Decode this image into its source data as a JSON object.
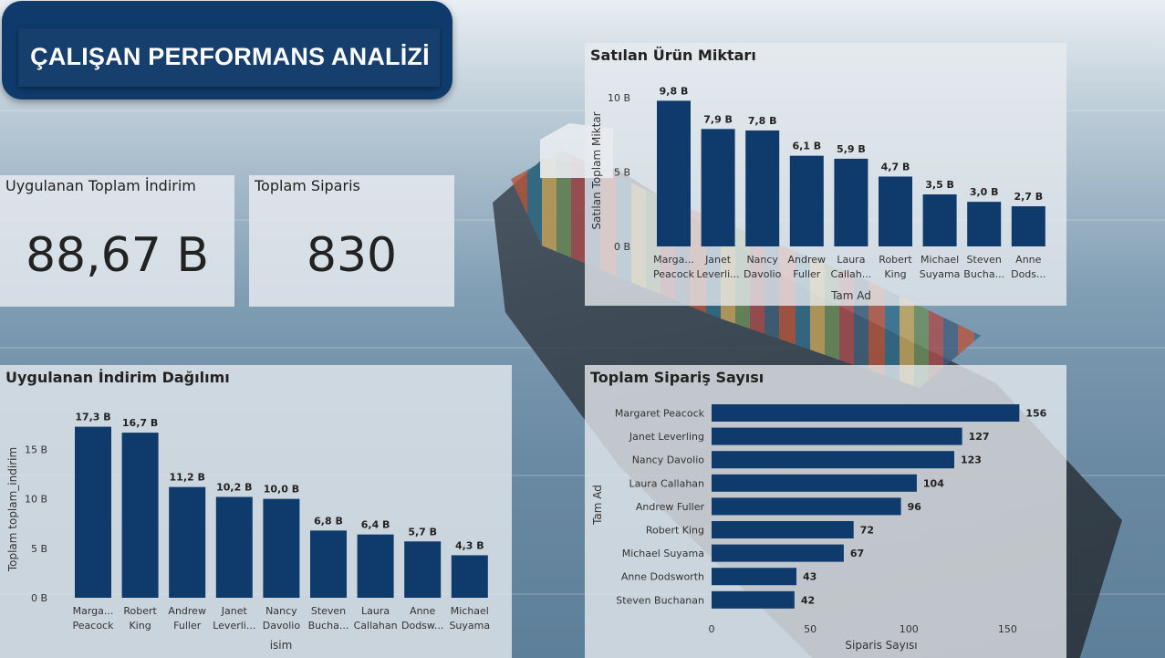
{
  "header": {
    "title": "ÇALIŞAN PERFORMANS ANALİZİ"
  },
  "kpis": {
    "discount": {
      "label": "Uygulanan Toplam İndirim",
      "value": "88,67 B"
    },
    "orders": {
      "label": "Toplam Siparis",
      "value": "830"
    }
  },
  "colors": {
    "bar": "#0f3a6c",
    "panel": "#e8ecf0"
  },
  "chart_data": [
    {
      "id": "quantity",
      "type": "bar",
      "title": "Satılan Ürün Miktarı",
      "xlabel": "Tam Ad",
      "ylabel": "Satılan Toplam Miktar",
      "categories": [
        "Marga... Peacock",
        "Janet Leverli...",
        "Nancy Davolio",
        "Andrew Fuller",
        "Laura Callah...",
        "Robert King",
        "Michael Suyama",
        "Steven Bucha...",
        "Anne Dods..."
      ],
      "values": [
        9.8,
        7.9,
        7.8,
        6.1,
        5.9,
        4.7,
        3.5,
        3.0,
        2.7
      ],
      "data_labels": [
        "9,8 B",
        "7,9 B",
        "7,8 B",
        "6,1 B",
        "5,9 B",
        "4,7 B",
        "3,5 B",
        "3,0 B",
        "2,7 B"
      ],
      "yticks": [
        0,
        5,
        10
      ],
      "ytick_labels": [
        "0 B",
        "5 B",
        "10 B"
      ],
      "ylim": [
        0,
        10.5
      ]
    },
    {
      "id": "discount",
      "type": "bar",
      "title": "Uygulanan İndirim Dağılımı",
      "xlabel": "isim",
      "ylabel": "Toplam toplam_indirim",
      "categories": [
        "Marga... Peacock",
        "Robert King",
        "Andrew Fuller",
        "Janet Leverli...",
        "Nancy Davolio",
        "Steven Bucha...",
        "Laura Callahan",
        "Anne Dodsw...",
        "Michael Suyama"
      ],
      "values": [
        17.3,
        16.7,
        11.2,
        10.2,
        10.0,
        6.8,
        6.4,
        5.7,
        4.3
      ],
      "data_labels": [
        "17,3 B",
        "16,7 B",
        "11,2 B",
        "10,2 B",
        "10,0 B",
        "6,8 B",
        "6,4 B",
        "5,7 B",
        "4,3 B"
      ],
      "yticks": [
        0,
        5,
        10,
        15
      ],
      "ytick_labels": [
        "0 B",
        "5 B",
        "10 B",
        "15 B"
      ],
      "ylim": [
        0,
        18
      ]
    },
    {
      "id": "orders",
      "type": "bar",
      "orientation": "horizontal",
      "title": "Toplam Sipariş Sayısı",
      "xlabel": "Siparis Sayısı",
      "ylabel": "Tam Ad",
      "categories": [
        "Margaret Peacock",
        "Janet Leverling",
        "Nancy Davolio",
        "Laura Callahan",
        "Andrew Fuller",
        "Robert King",
        "Michael Suyama",
        "Anne Dodsworth",
        "Steven Buchanan"
      ],
      "values": [
        156,
        127,
        123,
        104,
        96,
        72,
        67,
        43,
        42
      ],
      "xticks": [
        0,
        50,
        100,
        150
      ],
      "xlim": [
        0,
        160
      ]
    }
  ]
}
